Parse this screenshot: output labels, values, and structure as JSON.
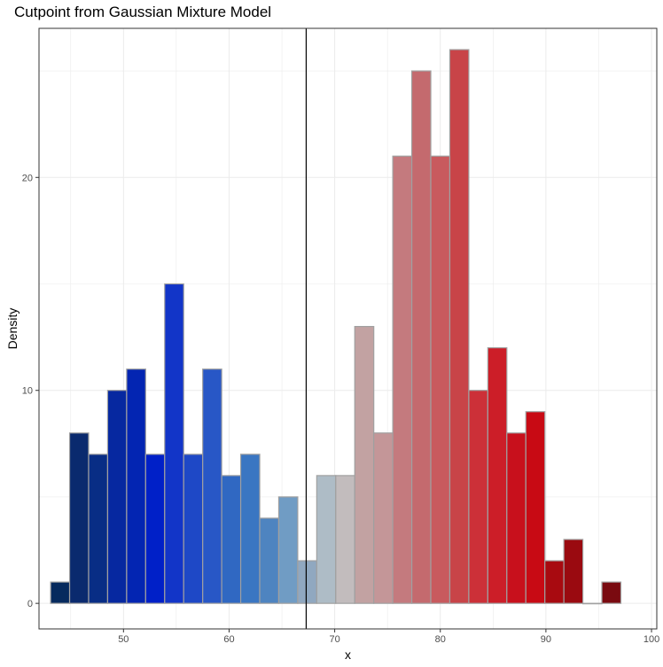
{
  "chart_data": {
    "type": "bar",
    "title": "Cutpoint from Gaussian Mixture Model",
    "xlabel": "x",
    "ylabel": "Density",
    "xlim": [
      42,
      100.5
    ],
    "ylim": [
      -1.2,
      27
    ],
    "xticks": [
      50,
      60,
      70,
      80,
      90,
      100
    ],
    "yticks": [
      0,
      10,
      20
    ],
    "bin_width": 1.8,
    "cutpoint": 67.3,
    "grid": true,
    "bins": [
      {
        "x": 44.0,
        "count": 1,
        "fill": "#062a5e"
      },
      {
        "x": 45.8,
        "count": 8,
        "fill": "#0a2a6e"
      },
      {
        "x": 47.6,
        "count": 7,
        "fill": "#082d85"
      },
      {
        "x": 49.4,
        "count": 10,
        "fill": "#0628a0"
      },
      {
        "x": 51.2,
        "count": 11,
        "fill": "#0325b2"
      },
      {
        "x": 53.0,
        "count": 7,
        "fill": "#0020c8"
      },
      {
        "x": 54.8,
        "count": 15,
        "fill": "#1235c8"
      },
      {
        "x": 56.6,
        "count": 7,
        "fill": "#1e48c6"
      },
      {
        "x": 58.4,
        "count": 11,
        "fill": "#2857c6"
      },
      {
        "x": 60.2,
        "count": 6,
        "fill": "#3068c2"
      },
      {
        "x": 62.0,
        "count": 7,
        "fill": "#3a76c2"
      },
      {
        "x": 63.8,
        "count": 4,
        "fill": "#4e84c0"
      },
      {
        "x": 65.6,
        "count": 5,
        "fill": "#709cc4"
      },
      {
        "x": 67.4,
        "count": 2,
        "fill": "#90a8c0"
      },
      {
        "x": 69.2,
        "count": 6,
        "fill": "#aebcc6"
      },
      {
        "x": 71.0,
        "count": 6,
        "fill": "#c2bcbd"
      },
      {
        "x": 72.8,
        "count": 13,
        "fill": "#c2a2a2"
      },
      {
        "x": 74.6,
        "count": 8,
        "fill": "#c49698"
      },
      {
        "x": 76.4,
        "count": 21,
        "fill": "#c47a7e"
      },
      {
        "x": 78.2,
        "count": 25,
        "fill": "#c46a6e"
      },
      {
        "x": 80.0,
        "count": 21,
        "fill": "#c85a5e"
      },
      {
        "x": 81.8,
        "count": 26,
        "fill": "#c84448"
      },
      {
        "x": 83.6,
        "count": 10,
        "fill": "#cc3038"
      },
      {
        "x": 85.4,
        "count": 12,
        "fill": "#cc1e28"
      },
      {
        "x": 87.2,
        "count": 8,
        "fill": "#c8101c"
      },
      {
        "x": 89.0,
        "count": 9,
        "fill": "#c80a14"
      },
      {
        "x": 90.8,
        "count": 2,
        "fill": "#a80a10"
      },
      {
        "x": 92.6,
        "count": 3,
        "fill": "#9a0a10"
      },
      {
        "x": 94.4,
        "count": 0,
        "fill": "#8a0a10"
      },
      {
        "x": 96.2,
        "count": 1,
        "fill": "#7a0a10"
      }
    ]
  }
}
